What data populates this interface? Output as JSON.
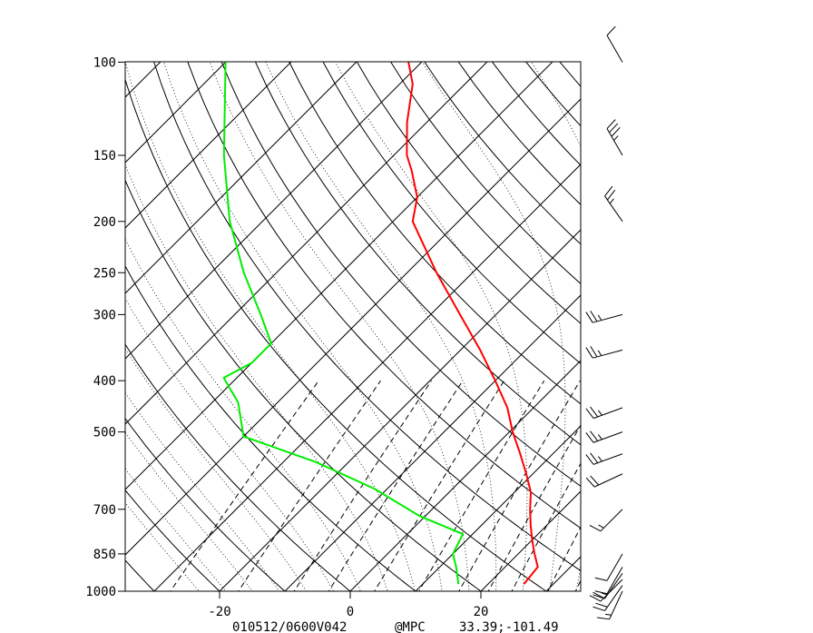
{
  "chart_data": {
    "type": "line",
    "pressure_ticks": [
      100,
      150,
      200,
      250,
      300,
      400,
      500,
      700,
      850,
      1000
    ],
    "pressure_tick_labels": [
      "100",
      "150",
      "200",
      "250",
      "300",
      "400",
      "500",
      "700",
      "850",
      "1000"
    ],
    "temperature_ticks": [
      -20,
      0,
      20
    ],
    "temperature_tick_labels": [
      "-20",
      "0",
      "20"
    ],
    "pressure_range": [
      1000,
      100
    ],
    "temperature_range_at_surface": [
      -34,
      35
    ],
    "skew": true,
    "log_pressure_axis": true,
    "series": [
      {
        "color": "#ff0000",
        "points": [
          {
            "p": 970,
            "t": 25.5
          },
          {
            "p": 900,
            "t": 25.0
          },
          {
            "p": 850,
            "t": 22.5
          },
          {
            "p": 800,
            "t": 20.0
          },
          {
            "p": 750,
            "t": 17.5
          },
          {
            "p": 700,
            "t": 15.0
          },
          {
            "p": 650,
            "t": 12.5
          },
          {
            "p": 600,
            "t": 9.0
          },
          {
            "p": 550,
            "t": 5.0
          },
          {
            "p": 500,
            "t": 0.5
          },
          {
            "p": 450,
            "t": -4.0
          },
          {
            "p": 400,
            "t": -10.0
          },
          {
            "p": 350,
            "t": -17.0
          },
          {
            "p": 300,
            "t": -25.5
          },
          {
            "p": 250,
            "t": -35.5
          },
          {
            "p": 200,
            "t": -47.0
          },
          {
            "p": 180,
            "t": -50.0
          },
          {
            "p": 160,
            "t": -55.0
          },
          {
            "p": 150,
            "t": -58.0
          },
          {
            "p": 130,
            "t": -63.0
          },
          {
            "p": 110,
            "t": -68.0
          },
          {
            "p": 100,
            "t": -72.0
          }
        ]
      },
      {
        "color": "#00ee00",
        "points": [
          {
            "p": 970,
            "t": 15.5
          },
          {
            "p": 900,
            "t": 12.5
          },
          {
            "p": 850,
            "t": 10.0
          },
          {
            "p": 780,
            "t": 8.5
          },
          {
            "p": 720,
            "t": -1.0
          },
          {
            "p": 640,
            "t": -12.0
          },
          {
            "p": 570,
            "t": -25.0
          },
          {
            "p": 510,
            "t": -40.0
          },
          {
            "p": 440,
            "t": -46.0
          },
          {
            "p": 395,
            "t": -52.0
          },
          {
            "p": 370,
            "t": -50.0
          },
          {
            "p": 340,
            "t": -50.0
          },
          {
            "p": 300,
            "t": -56.0
          },
          {
            "p": 250,
            "t": -65.0
          },
          {
            "p": 200,
            "t": -75.0
          },
          {
            "p": 150,
            "t": -86.0
          },
          {
            "p": 100,
            "t": -100.0
          }
        ]
      }
    ],
    "wind_barbs": [
      {
        "p": 1000,
        "dir_deg": 205,
        "speed_kt": 15
      },
      {
        "p": 975,
        "dir_deg": 215,
        "speed_kt": 20
      },
      {
        "p": 950,
        "dir_deg": 225,
        "speed_kt": 20
      },
      {
        "p": 925,
        "dir_deg": 215,
        "speed_kt": 15
      },
      {
        "p": 900,
        "dir_deg": 210,
        "speed_kt": 10
      },
      {
        "p": 850,
        "dir_deg": 210,
        "speed_kt": 10
      },
      {
        "p": 700,
        "dir_deg": 225,
        "speed_kt": 15
      },
      {
        "p": 600,
        "dir_deg": 245,
        "speed_kt": 20
      },
      {
        "p": 550,
        "dir_deg": 250,
        "speed_kt": 25
      },
      {
        "p": 500,
        "dir_deg": 250,
        "speed_kt": 25
      },
      {
        "p": 450,
        "dir_deg": 250,
        "speed_kt": 25
      },
      {
        "p": 350,
        "dir_deg": 255,
        "speed_kt": 25
      },
      {
        "p": 300,
        "dir_deg": 255,
        "speed_kt": 25
      },
      {
        "p": 200,
        "dir_deg": 325,
        "speed_kt": 25
      },
      {
        "p": 150,
        "dir_deg": 330,
        "speed_kt": 35
      },
      {
        "p": 100,
        "dir_deg": 330,
        "speed_kt": 10
      }
    ]
  },
  "footer": {
    "run": "010512/0600V042",
    "source": "@MPC",
    "location": "33.39;-101.49"
  }
}
